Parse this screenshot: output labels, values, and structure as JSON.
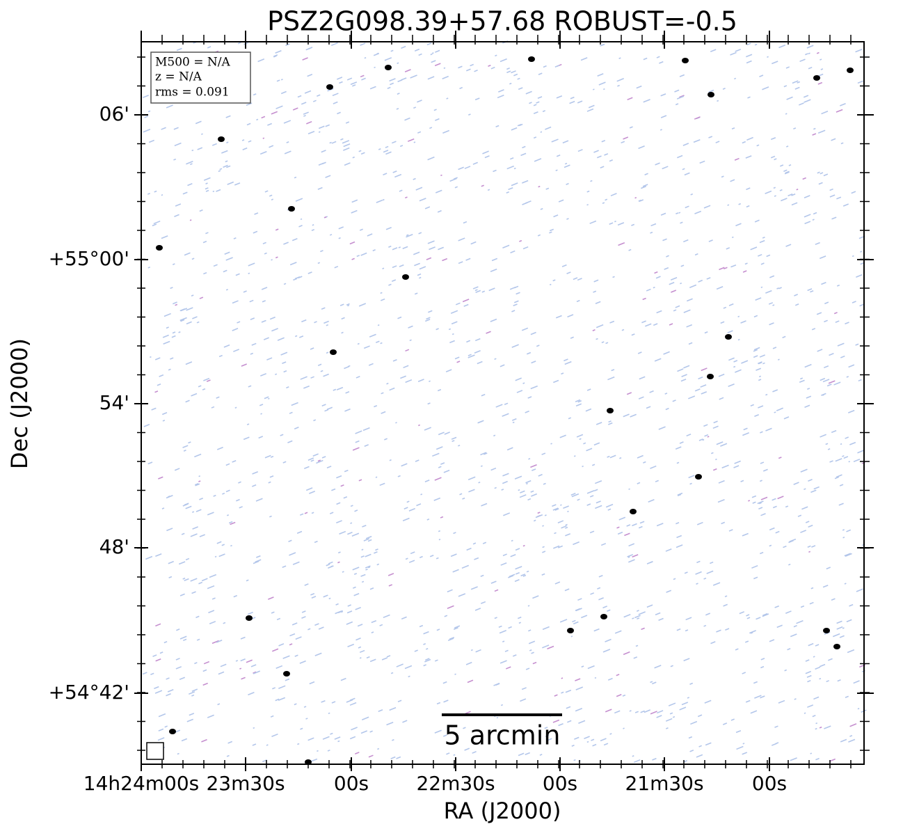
{
  "title": "PSZ2G098.39+57.68 ROBUST=-0.5",
  "info_box": [
    "M500 = N/A",
    "z = N/A",
    "rms = 0.091"
  ],
  "y_axis": {
    "label": "Dec (J2000)",
    "tick_labels": [
      "06'",
      "+55°00'",
      "54'",
      "48'",
      "+54°42'"
    ]
  },
  "x_axis": {
    "label": "RA (J2000)",
    "tick_labels": [
      "14h24m00s",
      "23m30s",
      "00s",
      "22m30s",
      "00s",
      "21m30s",
      "00s"
    ]
  },
  "scale_bar": "5 arcmin"
}
